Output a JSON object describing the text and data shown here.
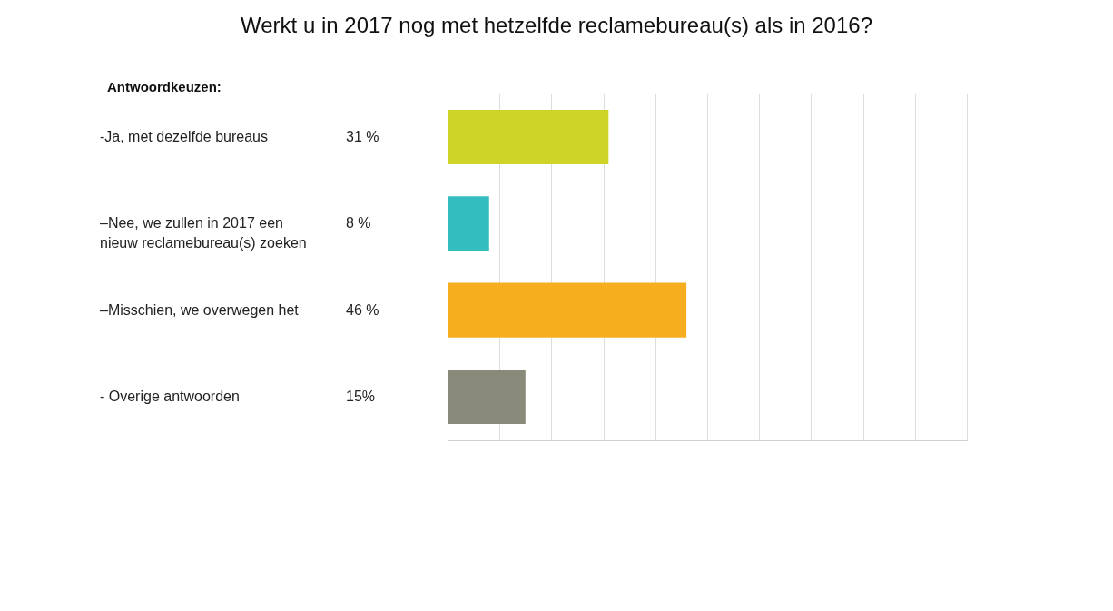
{
  "chart_data": {
    "type": "bar",
    "orientation": "horizontal",
    "title": "Werkt u in 2017 nog met hetzelfde reclamebureau(s) als in 2016?",
    "annotations": [
      "Antwoordkeuzen:"
    ],
    "categories": [
      "-Ja, met dezelfde bureaus",
      "–Nee, we zullen in 2017 een\nnieuw reclamebureau(s) zoeken",
      "–Misschien, we overwegen het",
      "- Overige antwoorden"
    ],
    "values": [
      31,
      8,
      46,
      15
    ],
    "value_labels": [
      "31 %",
      "8 %",
      "46 %",
      "15%"
    ],
    "colors": [
      "#cfd528",
      "#33bdbf",
      "#f6ae1f",
      "#898a79"
    ],
    "xlim": [
      0,
      100
    ],
    "xticks": [
      {
        "value": 0,
        "label": null
      },
      {
        "value": 10,
        "label": null
      },
      {
        "value": 20,
        "label": null
      },
      {
        "value": 30,
        "label": null
      },
      {
        "value": 40,
        "label": null
      },
      {
        "value": 50,
        "label": null
      },
      {
        "value": 60,
        "label": null
      },
      {
        "value": 70,
        "label": null
      },
      {
        "value": 80,
        "label": null
      },
      {
        "value": 90,
        "label": null
      },
      {
        "value": 100,
        "label": null
      }
    ],
    "grid": "x",
    "tick_labels": false
  }
}
